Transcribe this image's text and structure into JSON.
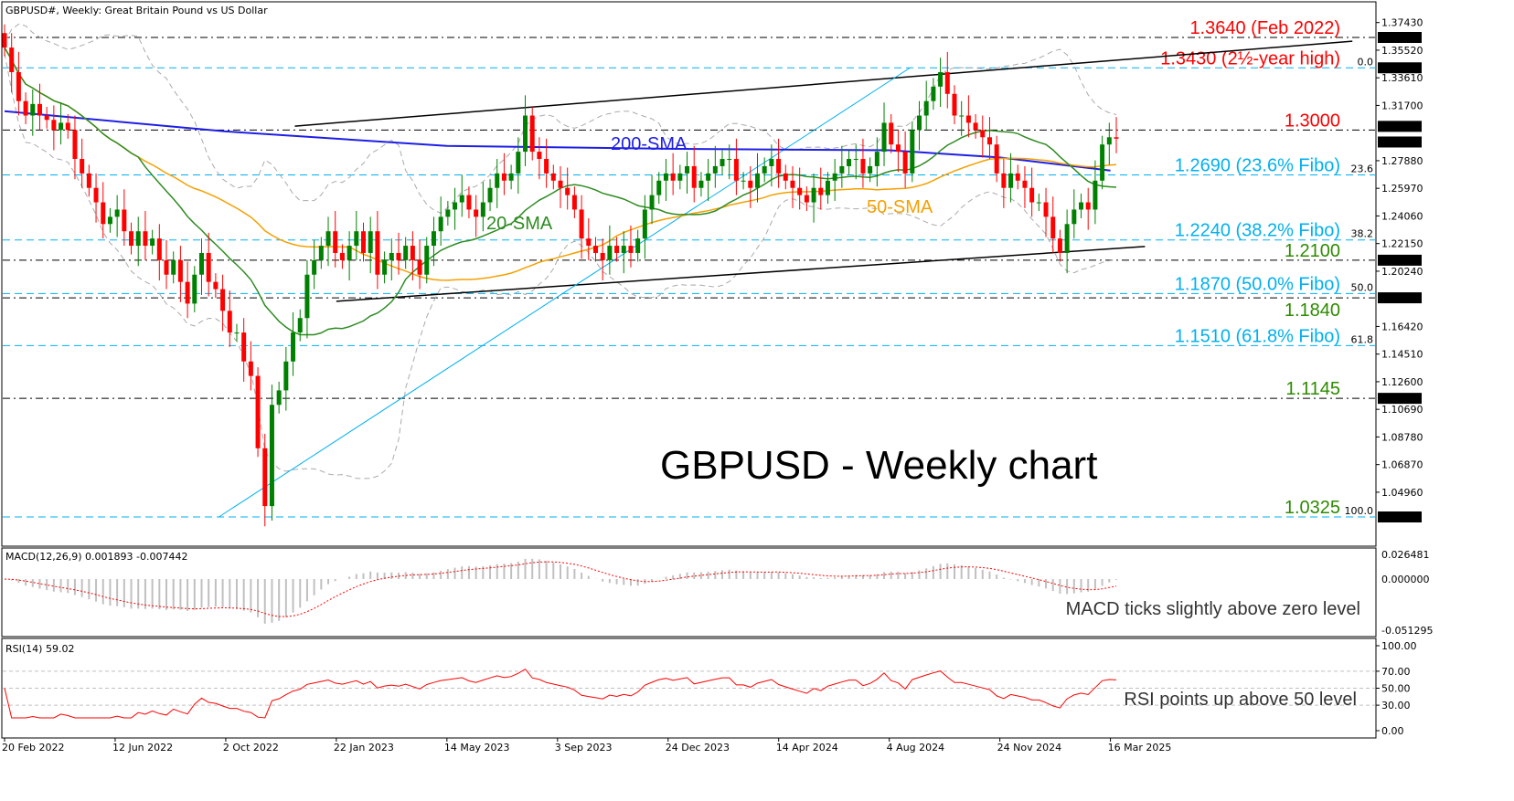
{
  "header": {
    "title": "GBPUSD#, Weekly:  Great Britain Pound vs US Dollar"
  },
  "colors": {
    "bull": "#008000",
    "bear": "#ff0000",
    "sma20": "#2e8b22",
    "sma50": "#f5a000",
    "sma200": "#1e1ee6",
    "bollinger": "#aaaaaa",
    "fibo": "#00b0f0",
    "macd_hist": "#c0c0c0",
    "macd_signal": "#ff0000",
    "rsi": "#ff0000"
  },
  "chart_data": {
    "type": "candlestick",
    "title": "GBPUSD - Weekly chart",
    "start_week": "2022-02-20",
    "ylim": [
      1.02,
      1.38
    ],
    "closes": [
      1.357,
      1.34,
      1.32,
      1.31,
      1.318,
      1.31,
      1.307,
      1.3,
      1.305,
      1.3,
      1.28,
      1.27,
      1.26,
      1.25,
      1.235,
      1.24,
      1.245,
      1.23,
      1.22,
      1.23,
      1.22,
      1.225,
      1.21,
      1.2,
      1.21,
      1.195,
      1.18,
      1.2,
      1.215,
      1.195,
      1.19,
      1.175,
      1.16,
      1.16,
      1.14,
      1.13,
      1.08,
      1.04,
      1.11,
      1.12,
      1.14,
      1.16,
      1.17,
      1.2,
      1.21,
      1.22,
      1.23,
      1.215,
      1.21,
      1.22,
      1.23,
      1.215,
      1.23,
      1.2,
      1.21,
      1.215,
      1.21,
      1.22,
      1.21,
      1.2,
      1.22,
      1.23,
      1.24,
      1.245,
      1.25,
      1.255,
      1.245,
      1.24,
      1.25,
      1.26,
      1.27,
      1.265,
      1.27,
      1.285,
      1.31,
      1.285,
      1.28,
      1.27,
      1.265,
      1.26,
      1.255,
      1.245,
      1.225,
      1.22,
      1.215,
      1.21,
      1.22,
      1.215,
      1.22,
      1.215,
      1.225,
      1.245,
      1.255,
      1.265,
      1.27,
      1.265,
      1.27,
      1.275,
      1.26,
      1.265,
      1.27,
      1.275,
      1.28,
      1.28,
      1.265,
      1.265,
      1.26,
      1.27,
      1.275,
      1.28,
      1.27,
      1.265,
      1.26,
      1.255,
      1.25,
      1.26,
      1.255,
      1.265,
      1.27,
      1.275,
      1.28,
      1.28,
      1.27,
      1.275,
      1.285,
      1.305,
      1.29,
      1.285,
      1.27,
      1.3,
      1.31,
      1.32,
      1.33,
      1.34,
      1.325,
      1.31,
      1.31,
      1.305,
      1.3,
      1.295,
      1.29,
      1.27,
      1.26,
      1.27,
      1.265,
      1.26,
      1.25,
      1.25,
      1.24,
      1.225,
      1.215,
      1.235,
      1.245,
      1.25,
      1.245,
      1.265,
      1.29,
      1.295,
      1.294
    ],
    "sma200": [
      {
        "date": "2022-02-20",
        "v": 1.313
      },
      {
        "date": "2022-10-02",
        "v": 1.299
      },
      {
        "date": "2023-05-14",
        "v": 1.289
      },
      {
        "date": "2023-12-24",
        "v": 1.287
      },
      {
        "date": "2024-08-04",
        "v": 1.286
      },
      {
        "date": "2024-11-24",
        "v": 1.281
      },
      {
        "date": "2025-03-16",
        "v": 1.272
      }
    ],
    "trendlines": [
      {
        "kind": "upper",
        "from": {
          "date": "2022-12-11",
          "v": 1.3027
        },
        "to": {
          "date": "2025-11-16",
          "v": 1.3614
        },
        "color": "#000000"
      },
      {
        "kind": "lower",
        "from": {
          "date": "2023-01-22",
          "v": 1.1816
        },
        "to": {
          "date": "2025-04-20",
          "v": 1.2195
        },
        "color": "#000000"
      },
      {
        "kind": "fibo",
        "from": {
          "date": "2022-09-25",
          "v": 1.0325
        },
        "to": {
          "date": "2024-08-25",
          "v": 1.343
        },
        "color": "#00b0f0"
      }
    ],
    "levels": [
      {
        "v": 1.364,
        "style": "black",
        "label": "1.3640 (Feb 2022)",
        "color": "#ff0000"
      },
      {
        "v": 1.343,
        "style": "fibo",
        "fib": "0.0",
        "label": "1.3430 (2½-year high)",
        "color": "#ff0000"
      },
      {
        "v": 1.3,
        "style": "black",
        "label": "1.3000",
        "color": "#ff0000"
      },
      {
        "v": 1.269,
        "style": "fibo",
        "fib": "23.6",
        "label": "1.2690 (23.6% Fibo)",
        "color": "#00b0f0"
      },
      {
        "v": 1.224,
        "style": "fibo",
        "fib": "38.2",
        "label": "1.2240 (38.2% Fibo)",
        "color": "#00b0f0"
      },
      {
        "v": 1.21,
        "style": "black",
        "label": "1.2100",
        "color": "#2e8b00"
      },
      {
        "v": 1.187,
        "style": "fibo",
        "fib": "50.0",
        "label": "1.1870 (50.0% Fibo)",
        "color": "#00b0f0"
      },
      {
        "v": 1.184,
        "style": "black",
        "label": "1.1840",
        "color": "#2e8b00"
      },
      {
        "v": 1.151,
        "style": "fibo",
        "fib": "61.8",
        "label": "1.1510 (61.8% Fibo)",
        "color": "#00b0f0"
      },
      {
        "v": 1.1145,
        "style": "black",
        "label": "1.1145",
        "color": "#2e8b00"
      },
      {
        "v": 1.0325,
        "style": "fibo",
        "fib": "100.0",
        "label": "1.0325",
        "color": "#2e8b00"
      }
    ],
    "sma_labels": [
      {
        "text": "200-SMA",
        "color": "#1e1ee6"
      },
      {
        "text": "20-SMA",
        "color": "#2e8b22"
      },
      {
        "text": "50-SMA",
        "color": "#f5a000"
      }
    ],
    "price_ticks": [
      "1.37430",
      "1.35520",
      "1.33610",
      "1.31700",
      "1.27880",
      "1.25970",
      "1.24060",
      "1.22150",
      "1.20240",
      "1.16420",
      "1.14510",
      "1.12600",
      "1.10690",
      "1.08780",
      "1.06870",
      "1.04960"
    ],
    "price_markers": [
      "1.36400",
      "1.34300",
      "1.30000",
      "1.29424",
      "1.21000",
      "1.18400",
      "1.11450",
      "1.03250"
    ],
    "date_ticks": [
      "20 Feb 2022",
      "12 Jun 2022",
      "2 Oct 2022",
      "22 Jan 2023",
      "14 May 2023",
      "3 Sep 2023",
      "24 Dec 2023",
      "14 Apr 2024",
      "4 Aug 2024",
      "24 Nov 2024",
      "16 Mar 2025"
    ],
    "macd": {
      "title": "MACD(12,26,9) 0.001893 -0.007442",
      "ticks": [
        "0.026481",
        "0.000000",
        "-0.051295"
      ],
      "note": "MACD ticks slightly above zero level"
    },
    "rsi": {
      "title": "RSI(14) 59.02",
      "ticks": [
        "100.00",
        "70.00",
        "50.00",
        "30.00",
        "0.00"
      ],
      "note": "RSI points up above 50 level"
    }
  }
}
